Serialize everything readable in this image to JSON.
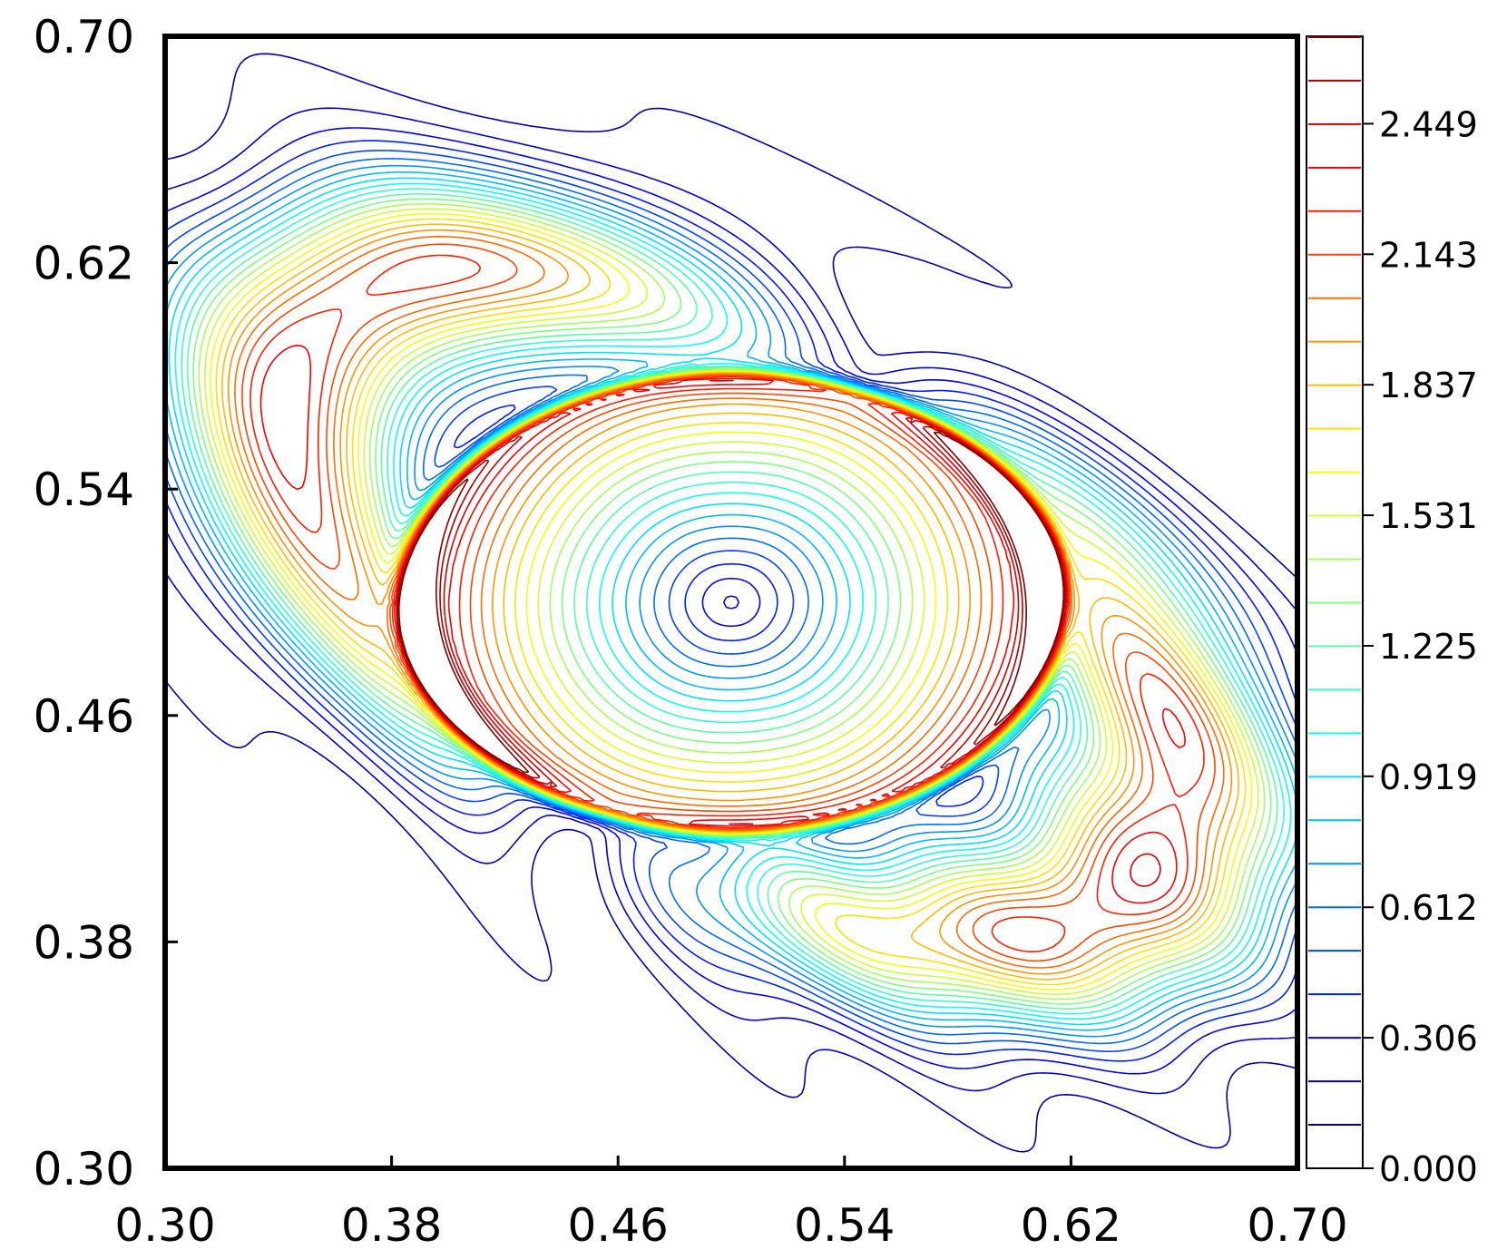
{
  "chart_data": {
    "type": "contour",
    "title": "",
    "xlabel": "",
    "ylabel": "",
    "xlim": [
      0.3,
      0.7
    ],
    "ylim": [
      0.3,
      0.7
    ],
    "x_ticks": [
      "0.30",
      "0.38",
      "0.46",
      "0.54",
      "0.62",
      "0.70"
    ],
    "y_ticks": [
      "0.30",
      "0.38",
      "0.46",
      "0.54",
      "0.62",
      "0.70"
    ],
    "colormap": "jet",
    "colorbar": {
      "range": [
        0.0,
        2.654
      ],
      "level_step": 0.102,
      "tick_labels": [
        "0.000",
        "0.306",
        "0.612",
        "0.919",
        "1.225",
        "1.531",
        "1.837",
        "2.143",
        "2.449"
      ],
      "tick_values": [
        0.0,
        0.306,
        0.612,
        0.919,
        1.225,
        1.531,
        1.837,
        2.143,
        2.449
      ],
      "placement": "right"
    },
    "features": [
      {
        "name": "central vortex minimum",
        "x": 0.5,
        "y": 0.5,
        "value": 0.0
      },
      {
        "name": "inner ring maximum left",
        "x": 0.39,
        "y": 0.5,
        "value": 2.6
      },
      {
        "name": "inner ring maximum right",
        "x": 0.61,
        "y": 0.5,
        "value": 2.6
      },
      {
        "name": "outer spiral arm maximum upper-left",
        "x": 0.33,
        "y": 0.56,
        "value": 2.3
      },
      {
        "name": "outer spiral arm maximum lower-right",
        "x": 0.67,
        "y": 0.44,
        "value": 2.3
      }
    ]
  }
}
